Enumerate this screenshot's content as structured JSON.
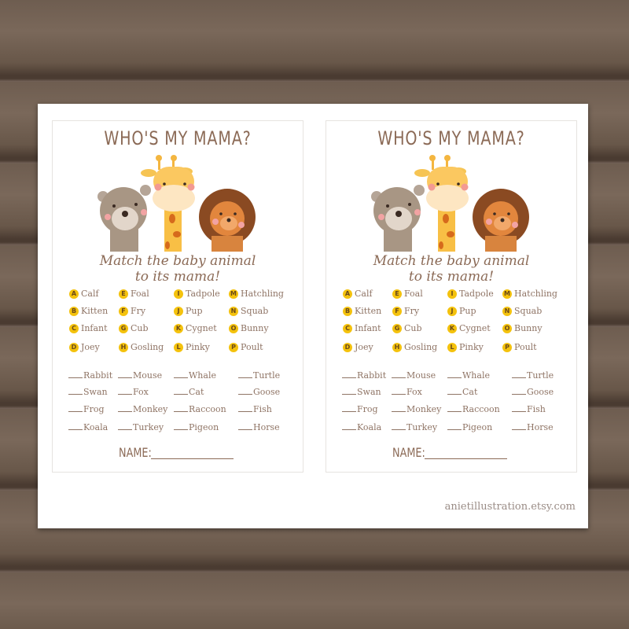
{
  "worksheet": {
    "title": "WHO'S MY MAMA?",
    "subtitle_line1": "Match the baby animal",
    "subtitle_line2": "to its mama!",
    "babies": [
      {
        "letter": "A",
        "word": "Calf"
      },
      {
        "letter": "B",
        "word": "Kitten"
      },
      {
        "letter": "C",
        "word": "Infant"
      },
      {
        "letter": "D",
        "word": "Joey"
      },
      {
        "letter": "E",
        "word": "Foal"
      },
      {
        "letter": "F",
        "word": "Fry"
      },
      {
        "letter": "G",
        "word": "Cub"
      },
      {
        "letter": "H",
        "word": "Gosling"
      },
      {
        "letter": "I",
        "word": "Tadpole"
      },
      {
        "letter": "J",
        "word": "Pup"
      },
      {
        "letter": "K",
        "word": "Cygnet"
      },
      {
        "letter": "L",
        "word": "Pinky"
      },
      {
        "letter": "M",
        "word": "Hatchling"
      },
      {
        "letter": "N",
        "word": "Squab"
      },
      {
        "letter": "O",
        "word": "Bunny"
      },
      {
        "letter": "P",
        "word": "Poult"
      }
    ],
    "mamas": [
      [
        "Rabbit",
        "Swan",
        "Frog",
        "Koala"
      ],
      [
        "Mouse",
        "Fox",
        "Monkey",
        "Turkey"
      ],
      [
        "Whale",
        "Cat",
        "Raccoon",
        "Pigeon"
      ],
      [
        "Turtle",
        "Goose",
        "Fish",
        "Horse"
      ]
    ],
    "name_label": "NAME:",
    "badge_color": "#f4c20d",
    "text_color": "#8b6a56"
  },
  "footer": "anietillustration.etsy.com"
}
